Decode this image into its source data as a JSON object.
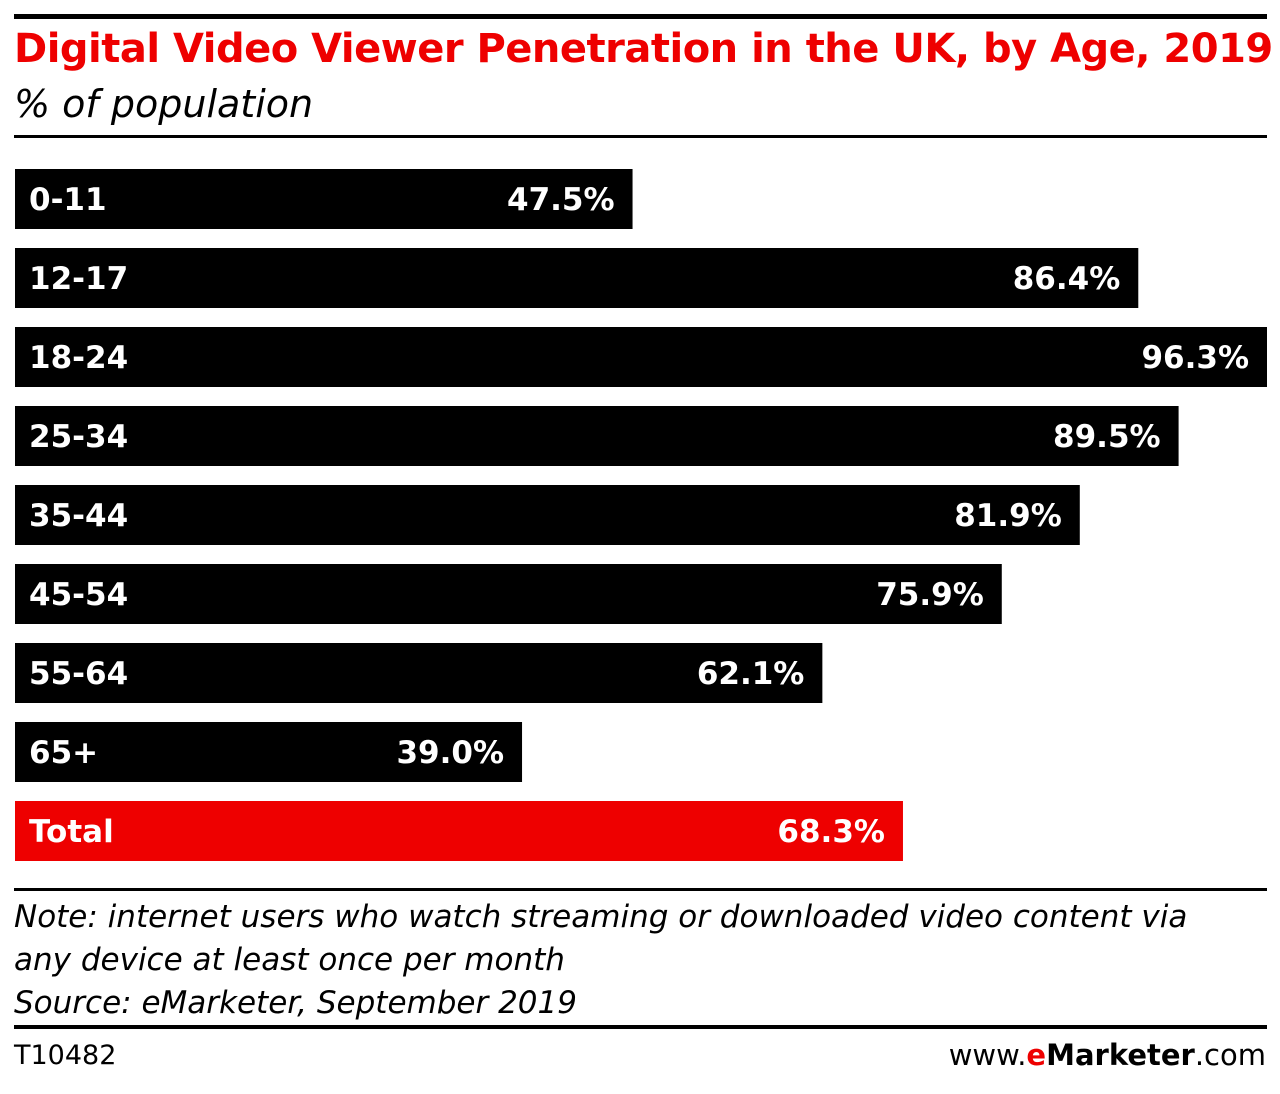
{
  "header": {
    "title": "Digital Video Viewer Penetration in the UK, by Age, 2019",
    "subtitle": "% of population"
  },
  "chart_data": {
    "type": "bar",
    "orientation": "horizontal",
    "categories": [
      "0-11",
      "12-17",
      "18-24",
      "25-34",
      "35-44",
      "45-54",
      "55-64",
      "65+",
      "Total"
    ],
    "values": [
      47.5,
      86.4,
      96.3,
      89.5,
      81.9,
      75.9,
      62.1,
      39.0,
      68.3
    ],
    "value_labels": [
      "47.5%",
      "86.4%",
      "96.3%",
      "89.5%",
      "81.9%",
      "75.9%",
      "62.1%",
      "39.0%",
      "68.3%"
    ],
    "bar_colors": [
      "#000000",
      "#000000",
      "#000000",
      "#000000",
      "#000000",
      "#000000",
      "#000000",
      "#000000",
      "#ee0000"
    ],
    "xlim": [
      0,
      96.3
    ],
    "grid": false,
    "legend": "none"
  },
  "footer": {
    "note_line1": "Note: internet users who watch streaming or downloaded video content via",
    "note_line2": "any device at least once per month",
    "source": "Source: eMarketer, September 2019",
    "chart_id": "T10482",
    "brand_prefix": "www.",
    "brand_e": "e",
    "brand_name": "Marketer",
    "brand_suffix": ".com"
  }
}
